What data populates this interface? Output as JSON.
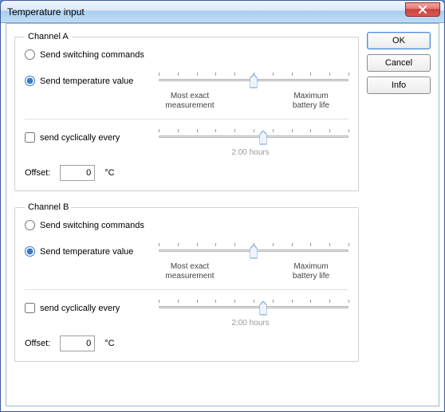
{
  "window": {
    "title": "Temperature input",
    "close_icon_color": "#ffffff",
    "close_bg_top": "#f5a5a0",
    "close_bg_bottom": "#c8403c"
  },
  "buttons": {
    "ok": "OK",
    "cancel": "Cancel",
    "info": "Info"
  },
  "slider_labels": {
    "left_line1": "Most exact",
    "left_line2": "measurement",
    "right_line1": "Maximum",
    "right_line2": "battery life"
  },
  "shared": {
    "mode_switching": "Send switching commands",
    "mode_temperature": "Send temperature value",
    "cyclic_label": "send cyclically every",
    "offset_label": "Offset:",
    "offset_unit": "°C"
  },
  "channel_a": {
    "legend": "Channel A",
    "mode_selected": "temperature",
    "slider_precision_percent": 50,
    "cyclic_checked": false,
    "slider_cyclic_percent": 55,
    "cyclic_caption": "2:00 hours",
    "offset_value": "0"
  },
  "channel_b": {
    "legend": "Channel B",
    "mode_selected": "temperature",
    "slider_precision_percent": 50,
    "cyclic_checked": false,
    "slider_cyclic_percent": 55,
    "cyclic_caption": "2:00 hours",
    "offset_value": "0"
  },
  "style": {
    "slider_thumb_fill": "#eef4fb",
    "slider_thumb_stroke": "#6f9dd1",
    "tick_count": 11
  }
}
